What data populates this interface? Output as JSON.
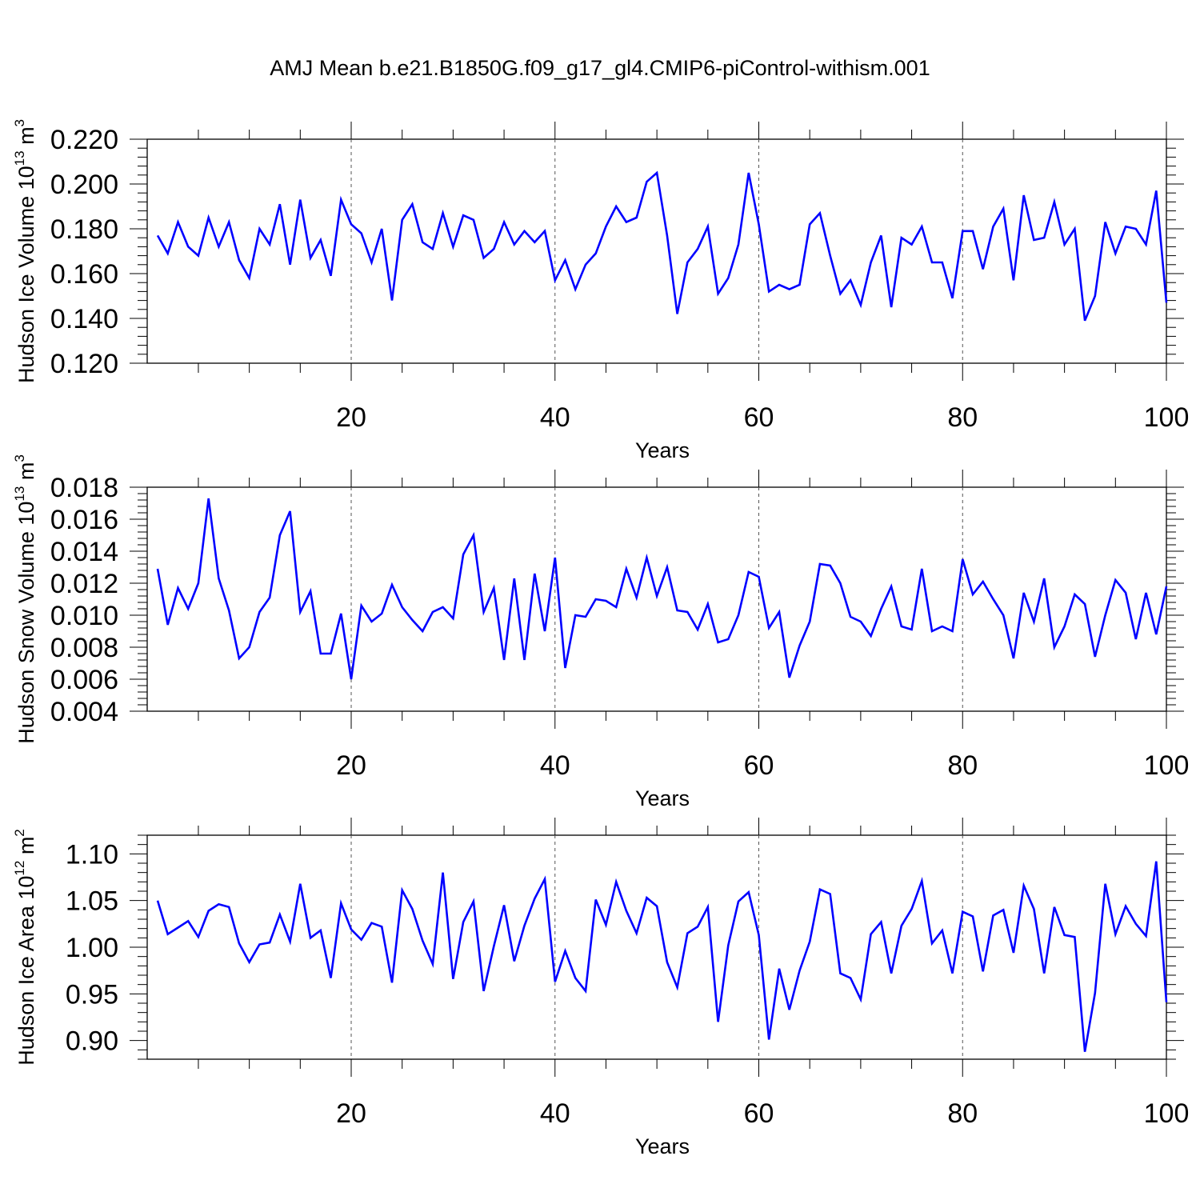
{
  "title": "AMJ Mean b.e21.B1850G.f09_g17_gl4.CMIP6-piControl-withism.001",
  "colors": {
    "line": "#0000ff",
    "axis": "#000000",
    "grid": "#555555"
  },
  "chart_data": [
    {
      "type": "line",
      "name": "ice-volume",
      "ylabel_main": "Hudson Ice Volume 10",
      "ylabel_exp": "13",
      "ylabel_unit": "m",
      "ylabel_unit_exp": "3",
      "xlabel": "Years",
      "xlim": [
        1,
        100
      ],
      "ylim": [
        0.12,
        0.22
      ],
      "yticks": [
        0.12,
        0.14,
        0.16,
        0.18,
        0.2,
        0.22
      ],
      "ytick_labels": [
        "0.120",
        "0.140",
        "0.160",
        "0.180",
        "0.200",
        "0.220"
      ],
      "xticks": [
        20,
        40,
        60,
        80,
        100
      ],
      "xtick_labels": [
        "20",
        "40",
        "60",
        "80",
        "100"
      ],
      "gridlines_x": [
        20,
        40,
        60,
        80
      ],
      "values": [
        0.177,
        0.169,
        0.183,
        0.172,
        0.168,
        0.185,
        0.172,
        0.183,
        0.166,
        0.158,
        0.18,
        0.173,
        0.191,
        0.164,
        0.193,
        0.167,
        0.175,
        0.159,
        0.193,
        0.182,
        0.178,
        0.165,
        0.18,
        0.148,
        0.184,
        0.191,
        0.174,
        0.171,
        0.187,
        0.172,
        0.186,
        0.184,
        0.167,
        0.171,
        0.183,
        0.173,
        0.179,
        0.174,
        0.179,
        0.157,
        0.166,
        0.153,
        0.164,
        0.169,
        0.181,
        0.19,
        0.183,
        0.185,
        0.201,
        0.205,
        0.177,
        0.142,
        0.165,
        0.171,
        0.181,
        0.151,
        0.158,
        0.173,
        0.205,
        0.182,
        0.152,
        0.155,
        0.153,
        0.155,
        0.182,
        0.187,
        0.168,
        0.151,
        0.157,
        0.146,
        0.165,
        0.177,
        0.145,
        0.176,
        0.173,
        0.181,
        0.165,
        0.165,
        0.149,
        0.179,
        0.179,
        0.162,
        0.181,
        0.189,
        0.157,
        0.195,
        0.175,
        0.176,
        0.192,
        0.173,
        0.18,
        0.139,
        0.15,
        0.183,
        0.169,
        0.181,
        0.18,
        0.173,
        0.197,
        0.147
      ]
    },
    {
      "type": "line",
      "name": "snow-volume",
      "ylabel_main": "Hudson Snow Volume 10",
      "ylabel_exp": "13",
      "ylabel_unit": "m",
      "ylabel_unit_exp": "3",
      "xlabel": "Years",
      "xlim": [
        1,
        100
      ],
      "ylim": [
        0.004,
        0.018
      ],
      "yticks": [
        0.004,
        0.006,
        0.008,
        0.01,
        0.012,
        0.014,
        0.016,
        0.018
      ],
      "ytick_labels": [
        "0.004",
        "0.006",
        "0.008",
        "0.010",
        "0.012",
        "0.014",
        "0.016",
        "0.018"
      ],
      "xticks": [
        20,
        40,
        60,
        80,
        100
      ],
      "xtick_labels": [
        "20",
        "40",
        "60",
        "80",
        "100"
      ],
      "gridlines_x": [
        20,
        40,
        60,
        80
      ],
      "values": [
        0.0129,
        0.0094,
        0.0117,
        0.0104,
        0.012,
        0.0173,
        0.0123,
        0.0103,
        0.0073,
        0.008,
        0.0102,
        0.0111,
        0.015,
        0.0165,
        0.0102,
        0.0115,
        0.0076,
        0.0076,
        0.0101,
        0.006,
        0.0106,
        0.0096,
        0.0101,
        0.0119,
        0.0105,
        0.0097,
        0.009,
        0.0102,
        0.0105,
        0.0098,
        0.0138,
        0.015,
        0.0102,
        0.0117,
        0.0072,
        0.0123,
        0.0072,
        0.0126,
        0.009,
        0.0136,
        0.0067,
        0.01,
        0.0099,
        0.011,
        0.0109,
        0.0105,
        0.0129,
        0.0111,
        0.0136,
        0.0112,
        0.013,
        0.0103,
        0.0102,
        0.0091,
        0.0107,
        0.0083,
        0.0085,
        0.01,
        0.0127,
        0.0124,
        0.0092,
        0.0102,
        0.0061,
        0.0081,
        0.0096,
        0.0132,
        0.0131,
        0.012,
        0.0099,
        0.0096,
        0.0087,
        0.0104,
        0.0118,
        0.0093,
        0.0091,
        0.0129,
        0.009,
        0.0093,
        0.009,
        0.0135,
        0.0113,
        0.0121,
        0.011,
        0.01,
        0.0073,
        0.0114,
        0.0096,
        0.0123,
        0.008,
        0.0093,
        0.0113,
        0.0107,
        0.0074,
        0.01,
        0.0122,
        0.0114,
        0.0085,
        0.0114,
        0.0088,
        0.0118
      ]
    },
    {
      "type": "line",
      "name": "ice-area",
      "ylabel_main": "Hudson Ice Area 10",
      "ylabel_exp": "12",
      "ylabel_unit": "m",
      "ylabel_unit_exp": "2",
      "xlabel": "Years",
      "xlim": [
        1,
        100
      ],
      "ylim": [
        0.88,
        1.12
      ],
      "yticks": [
        0.9,
        0.95,
        1.0,
        1.05,
        1.1
      ],
      "ytick_labels": [
        "0.90",
        "0.95",
        "1.00",
        "1.05",
        "1.10"
      ],
      "xticks": [
        20,
        40,
        60,
        80,
        100
      ],
      "xtick_labels": [
        "20",
        "40",
        "60",
        "80",
        "100"
      ],
      "gridlines_x": [
        20,
        40,
        60,
        80
      ],
      "values": [
        1.05,
        1.014,
        1.021,
        1.028,
        1.011,
        1.039,
        1.046,
        1.043,
        1.004,
        0.984,
        1.003,
        1.005,
        1.035,
        1.006,
        1.068,
        1.01,
        1.018,
        0.967,
        1.047,
        1.019,
        1.008,
        1.026,
        1.022,
        0.962,
        1.061,
        1.041,
        1.007,
        0.982,
        1.08,
        0.966,
        1.027,
        1.049,
        0.953,
        1.001,
        1.045,
        0.985,
        1.023,
        1.052,
        1.073,
        0.963,
        0.996,
        0.967,
        0.953,
        1.051,
        1.024,
        1.07,
        1.039,
        1.015,
        1.053,
        1.044,
        0.984,
        0.957,
        1.015,
        1.022,
        1.043,
        0.92,
        1.002,
        1.049,
        1.059,
        1.013,
        0.901,
        0.977,
        0.933,
        0.975,
        1.006,
        1.062,
        1.057,
        0.972,
        0.967,
        0.944,
        1.014,
        1.027,
        0.972,
        1.023,
        1.041,
        1.071,
        1.004,
        1.018,
        0.972,
        1.038,
        1.033,
        0.974,
        1.034,
        1.04,
        0.994,
        1.066,
        1.041,
        0.972,
        1.043,
        1.013,
        1.011,
        0.888,
        0.951,
        1.068,
        1.014,
        1.044,
        1.025,
        1.012,
        1.092,
        0.941
      ]
    }
  ]
}
